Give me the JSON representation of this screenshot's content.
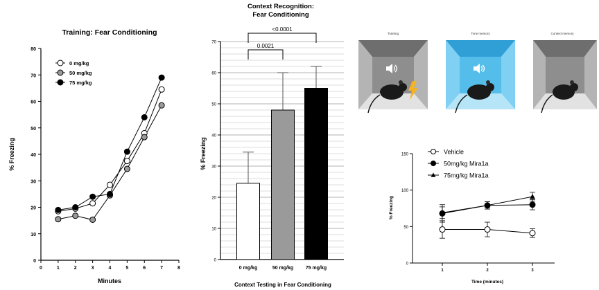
{
  "chart_data": [
    {
      "type": "line",
      "title": "Training: Fear Conditioning",
      "xlabel": "Minutes",
      "ylabel": "% Freezing",
      "xlim": [
        0,
        8
      ],
      "ylim": [
        0,
        80
      ],
      "xticks": [
        0,
        1,
        2,
        3,
        4,
        5,
        6,
        7,
        8
      ],
      "yticks": [
        0,
        10,
        20,
        30,
        40,
        50,
        60,
        70,
        80
      ],
      "legend_position": "top-left",
      "x": [
        1,
        2,
        3,
        4,
        5,
        6,
        7
      ],
      "series": [
        {
          "name": "0 mg/kg",
          "marker": "open-circle",
          "color": "#ffffff",
          "values": [
            18.5,
            19.5,
            21.5,
            28.5,
            37.5,
            48,
            64.5
          ]
        },
        {
          "name": "50 mg/kg",
          "marker": "gray-circle",
          "color": "#9a9a9a",
          "values": [
            15.5,
            16.8,
            15.3,
            24.5,
            34.5,
            46.5,
            58.5
          ]
        },
        {
          "name": "75 mg/kg",
          "marker": "filled-circle",
          "color": "#000000",
          "values": [
            19,
            20,
            24,
            25,
            41,
            54,
            69
          ]
        }
      ]
    },
    {
      "type": "bar",
      "title": "Context Recognition:",
      "subtitle": "Fear Conditioning",
      "xlabel": "Context Testing in Fear Conditioning",
      "ylabel": "% Freezing",
      "ylim": [
        0,
        70
      ],
      "yticks": [
        0,
        10,
        20,
        30,
        40,
        50,
        60,
        70
      ],
      "categories": [
        "0 mg/kg",
        "50 mg/kg",
        "75 mg/kg"
      ],
      "values": [
        24.5,
        48,
        55
      ],
      "errors": [
        10,
        12,
        7
      ],
      "colors": [
        "#ffffff",
        "#9a9a9a",
        "#000000"
      ],
      "significance": [
        {
          "from": 0,
          "to": 1,
          "label": "0.0021"
        },
        {
          "from": 0,
          "to": 2,
          "label": "<0.0001"
        }
      ]
    },
    {
      "type": "line",
      "xlabel": "Time (minutes)",
      "ylabel": "% Freezing",
      "ylim": [
        0,
        150
      ],
      "yticks": [
        0,
        50,
        100,
        150
      ],
      "xticks": [
        1,
        2,
        3
      ],
      "legend_position": "top-left",
      "x": [
        1,
        2,
        3
      ],
      "series": [
        {
          "name": "Vehicle",
          "marker": "open-circle",
          "values": [
            46,
            46,
            41
          ],
          "errors": [
            12,
            10,
            6
          ]
        },
        {
          "name": "50mg/kg Mira1a",
          "marker": "filled-circle",
          "values": [
            68,
            79,
            80
          ],
          "errors": [
            12,
            5,
            7
          ]
        },
        {
          "name": "75mg/kg Mira1a",
          "marker": "filled-triangle",
          "values": [
            69,
            79,
            91
          ],
          "errors": [
            8,
            5,
            6
          ]
        }
      ]
    }
  ],
  "illustration": {
    "labels": [
      "Training",
      "Tone memory",
      "Context memory"
    ],
    "colors": {
      "training": "#8c8c8c",
      "tone": "#55bde9",
      "context": "#8c8c8c",
      "bolt": "#f5b324"
    }
  }
}
